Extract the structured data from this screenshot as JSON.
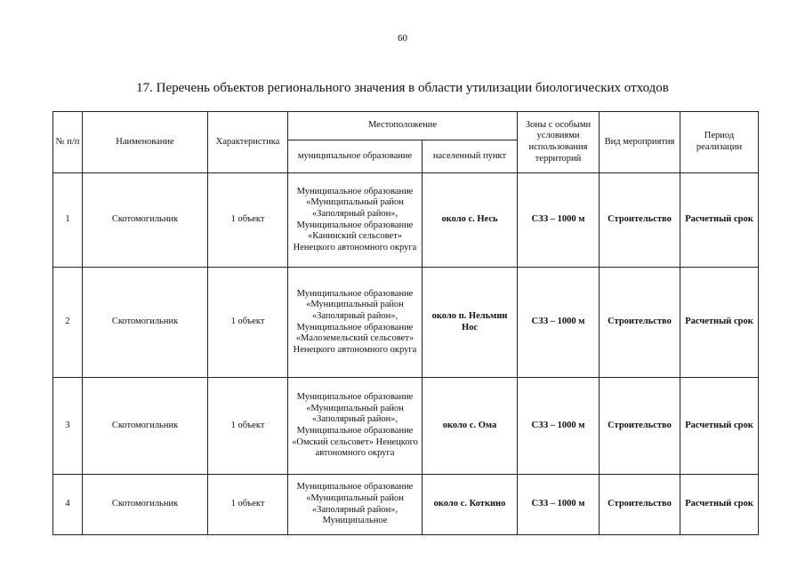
{
  "page_number": "60",
  "title": "17. Перечень объектов регионального значения в области утилизации биологических отходов",
  "table": {
    "headers": {
      "num": "№ п/п",
      "name": "Наименование",
      "characteristic": "Характеристика",
      "location": "Местоположение",
      "municipality": "муниципальное образование",
      "settlement": "населенный пункт",
      "zones": "Зоны с особыми условиями использования территорий",
      "activity": "Вид мероприятия",
      "period": "Период реализации"
    },
    "rows": [
      {
        "num": "1",
        "name": "Скотомогильник",
        "characteristic": "1 объект",
        "municipality": "Муниципальное образование «Муниципальный район «Заполярный район», Муниципальное образование «Канинский сельсовет» Ненецкого автономного округа",
        "settlement": "около с. Несь",
        "zones": "СЗЗ – 1000 м",
        "activity": "Строительство",
        "period": "Расчетный срок"
      },
      {
        "num": "2",
        "name": "Скотомогильник",
        "characteristic": "1 объект",
        "municipality": "Муниципальное образование «Муниципальный район «Заполярный район», Муниципальное образование «Малоземельский сельсовет» Ненецкого автономного округа",
        "settlement": "около п. Нельмин Нос",
        "zones": "СЗЗ – 1000 м",
        "activity": "Строительство",
        "period": "Расчетный срок"
      },
      {
        "num": "3",
        "name": "Скотомогильник",
        "characteristic": "1 объект",
        "municipality": "Муниципальное образование «Муниципальный район «Заполярный район», Муниципальное образование «Омский сельсовет» Ненецкого автономного округа",
        "settlement": "около с. Ома",
        "zones": "СЗЗ – 1000 м",
        "activity": "Строительство",
        "period": "Расчетный срок"
      },
      {
        "num": "4",
        "name": "Скотомогильник",
        "characteristic": "1 объект",
        "municipality": "Муниципальное образование «Муниципальный район «Заполярный район», Муниципальное",
        "settlement": "около с. Коткино",
        "zones": "СЗЗ – 1000 м",
        "activity": "Строительство",
        "period": "Расчетный срок"
      }
    ]
  }
}
